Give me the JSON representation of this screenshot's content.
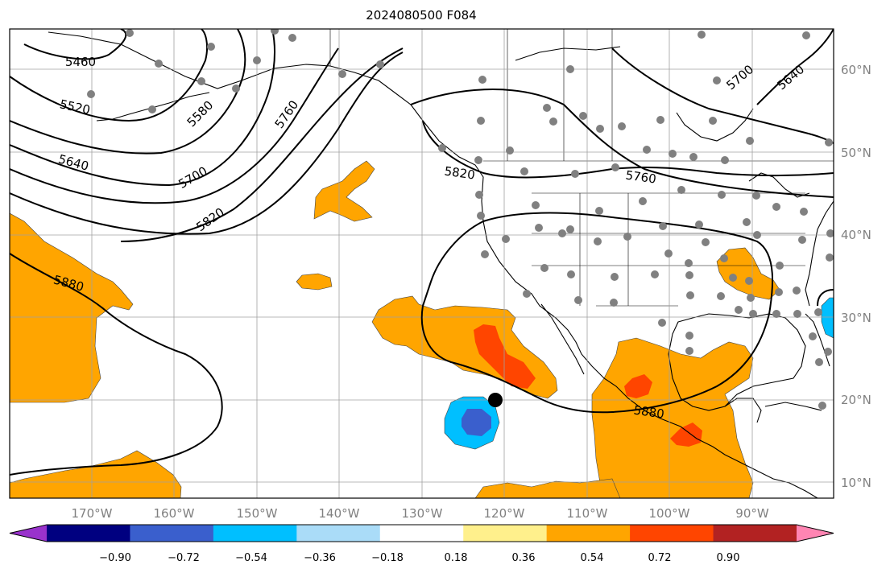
{
  "title": "2024080500 F084",
  "map": {
    "lat_labels": [
      "60°N",
      "50°N",
      "40°N",
      "30°N",
      "20°N",
      "10°N"
    ],
    "lon_labels": [
      "170°W",
      "160°W",
      "150°W",
      "140°W",
      "130°W",
      "120°W",
      "110°W",
      "100°W",
      "90°W"
    ],
    "contour_labels": [
      "5460",
      "5520",
      "5580",
      "5640",
      "5700",
      "5760",
      "5820",
      "5880",
      "5820",
      "5760",
      "5880",
      "5640",
      "5700"
    ],
    "marker": "storm-center-dot",
    "station_dot_color": "#808080",
    "grid": true
  },
  "colorbar": {
    "colors": [
      "#9932cc",
      "#000080",
      "#3a5fcd",
      "#00bfff",
      "#aadcf8",
      "#ffffff",
      "#fff08c",
      "#ffa500",
      "#ff4500",
      "#b22222",
      "#ff85b3"
    ],
    "tick_labels": [
      "−0.90",
      "−0.72",
      "−0.54",
      "−0.36",
      "−0.18",
      "0.18",
      "0.36",
      "0.54",
      "0.72",
      "0.90"
    ]
  }
}
